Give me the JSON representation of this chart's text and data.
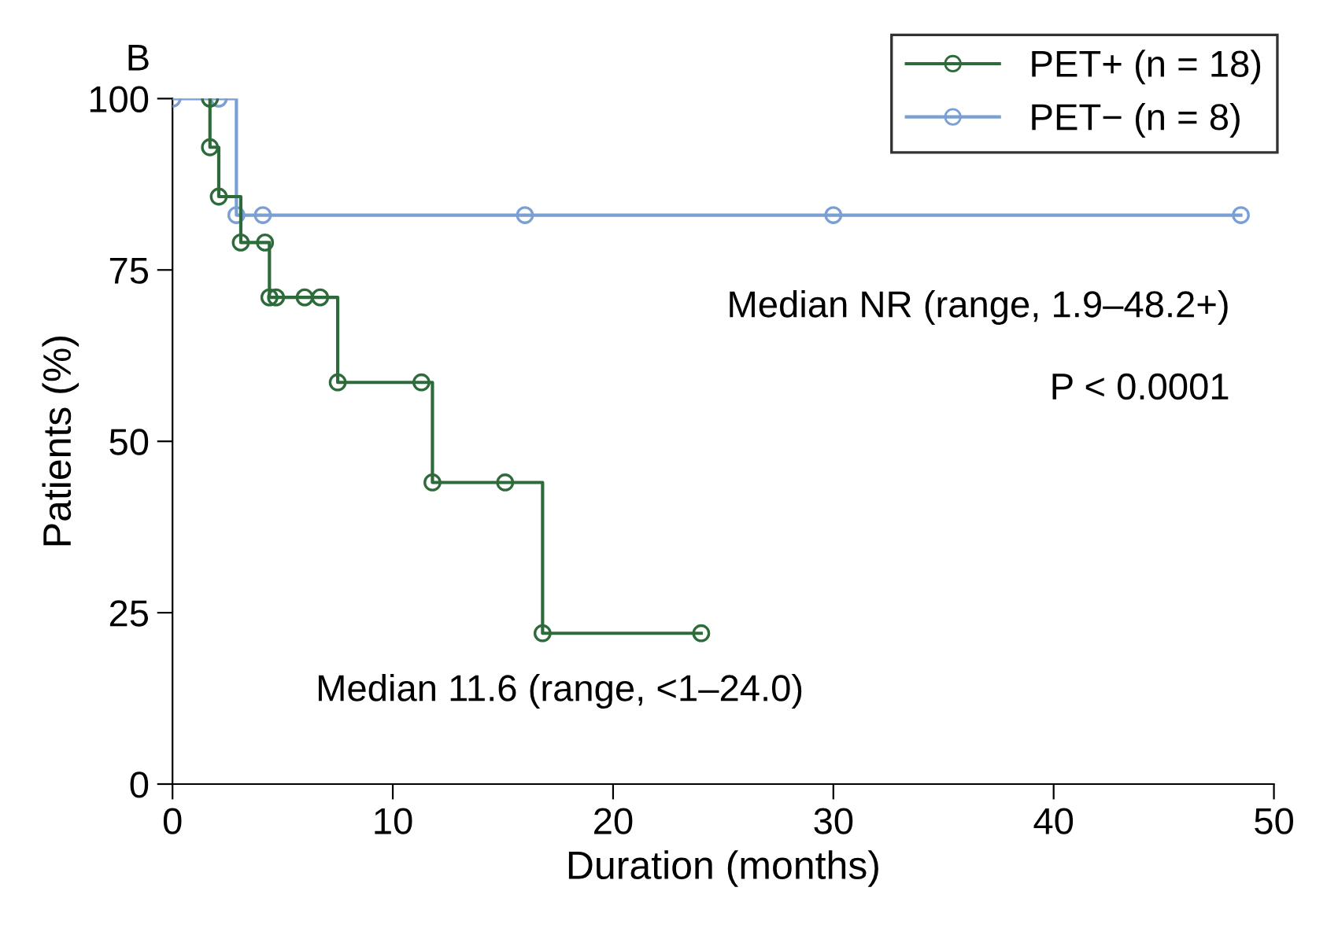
{
  "chart_data": {
    "type": "step",
    "xlabel": "Duration (months)",
    "ylabel": "Patients (%)",
    "xlim": [
      0,
      50
    ],
    "xticks": [
      0,
      10,
      20,
      30,
      40,
      50
    ],
    "ylim": [
      0,
      100
    ],
    "yticks": [
      0,
      25,
      50,
      75,
      100
    ],
    "grid": false,
    "legend": "top right",
    "marker": "circle",
    "line_style": "solid",
    "annotations": [
      "B",
      "Median NR (range, 1.9–48.2+)",
      "P < 0.0001",
      "Median 11.6 (range, <1–24.0)"
    ],
    "series": [
      {
        "name": "PET+ (n = 18)",
        "color": "#2e6b3a",
        "x": [
          1.7,
          1.7,
          2.1,
          3.1,
          4.2,
          4.4,
          4.7,
          6.0,
          6.7,
          7.5,
          11.3,
          11.8,
          15.1,
          16.8,
          24.0
        ],
        "values": [
          100,
          92.9,
          85.7,
          79,
          79,
          71,
          71,
          71,
          71,
          58.6,
          58.6,
          44,
          44,
          22,
          22
        ]
      },
      {
        "name": "PET− (n = 8)",
        "color": "#7a9fd4",
        "x": [
          0,
          2.1,
          2.9,
          4.1,
          16.0,
          30.0,
          48.5
        ],
        "values": [
          100,
          100,
          83,
          83,
          83,
          83,
          83
        ]
      }
    ]
  }
}
